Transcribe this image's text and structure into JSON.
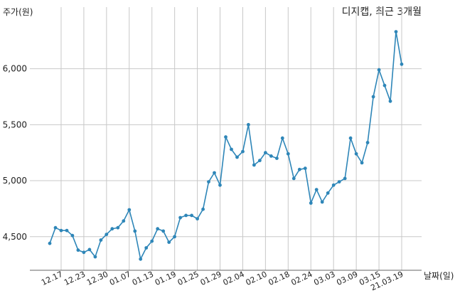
{
  "chart_data": {
    "type": "line",
    "title": "디지캡, 최근 3개월",
    "ylabel": "주가(원)",
    "xlabel": "날짜(일)",
    "ylim": [
      4200,
      6550
    ],
    "yticks": [
      4500,
      5000,
      5500,
      6000
    ],
    "ytick_labels": [
      "4,500",
      "5,000",
      "5,500",
      "6,000"
    ],
    "x_tick_labels": [
      "12.17",
      "12.23",
      "12.30",
      "01.07",
      "01.13",
      "01.19",
      "01.25",
      "01.29",
      "02.04",
      "02.10",
      "02.18",
      "02.24",
      "03.03",
      "03.09",
      "03.15",
      "21.03.19"
    ],
    "x_tick_index": [
      2,
      6,
      10,
      14,
      18,
      22,
      26,
      30,
      34,
      38,
      42,
      46,
      50,
      54,
      58,
      62
    ],
    "grid": true,
    "line_color": "#2e86b8",
    "series": [
      {
        "values": [
          4440,
          4580,
          4555,
          4555,
          4510,
          4380,
          4360,
          4385,
          4320,
          4470,
          4520,
          4570,
          4580,
          4640,
          4740,
          4550,
          4300,
          4400,
          4460,
          4570,
          4550,
          4450,
          4500,
          4670,
          4690,
          4690,
          4660,
          4745,
          4990,
          5070,
          4960,
          5390,
          5280,
          5210,
          5260,
          5500,
          5140,
          5180,
          5250,
          5220,
          5200,
          5380,
          5240,
          5020,
          5100,
          5110,
          4800,
          4920,
          4810,
          4890,
          4960,
          4990,
          5020,
          5380,
          5240,
          5160,
          5340,
          5750,
          5990,
          5850,
          5710,
          6330,
          6040
        ]
      }
    ]
  }
}
